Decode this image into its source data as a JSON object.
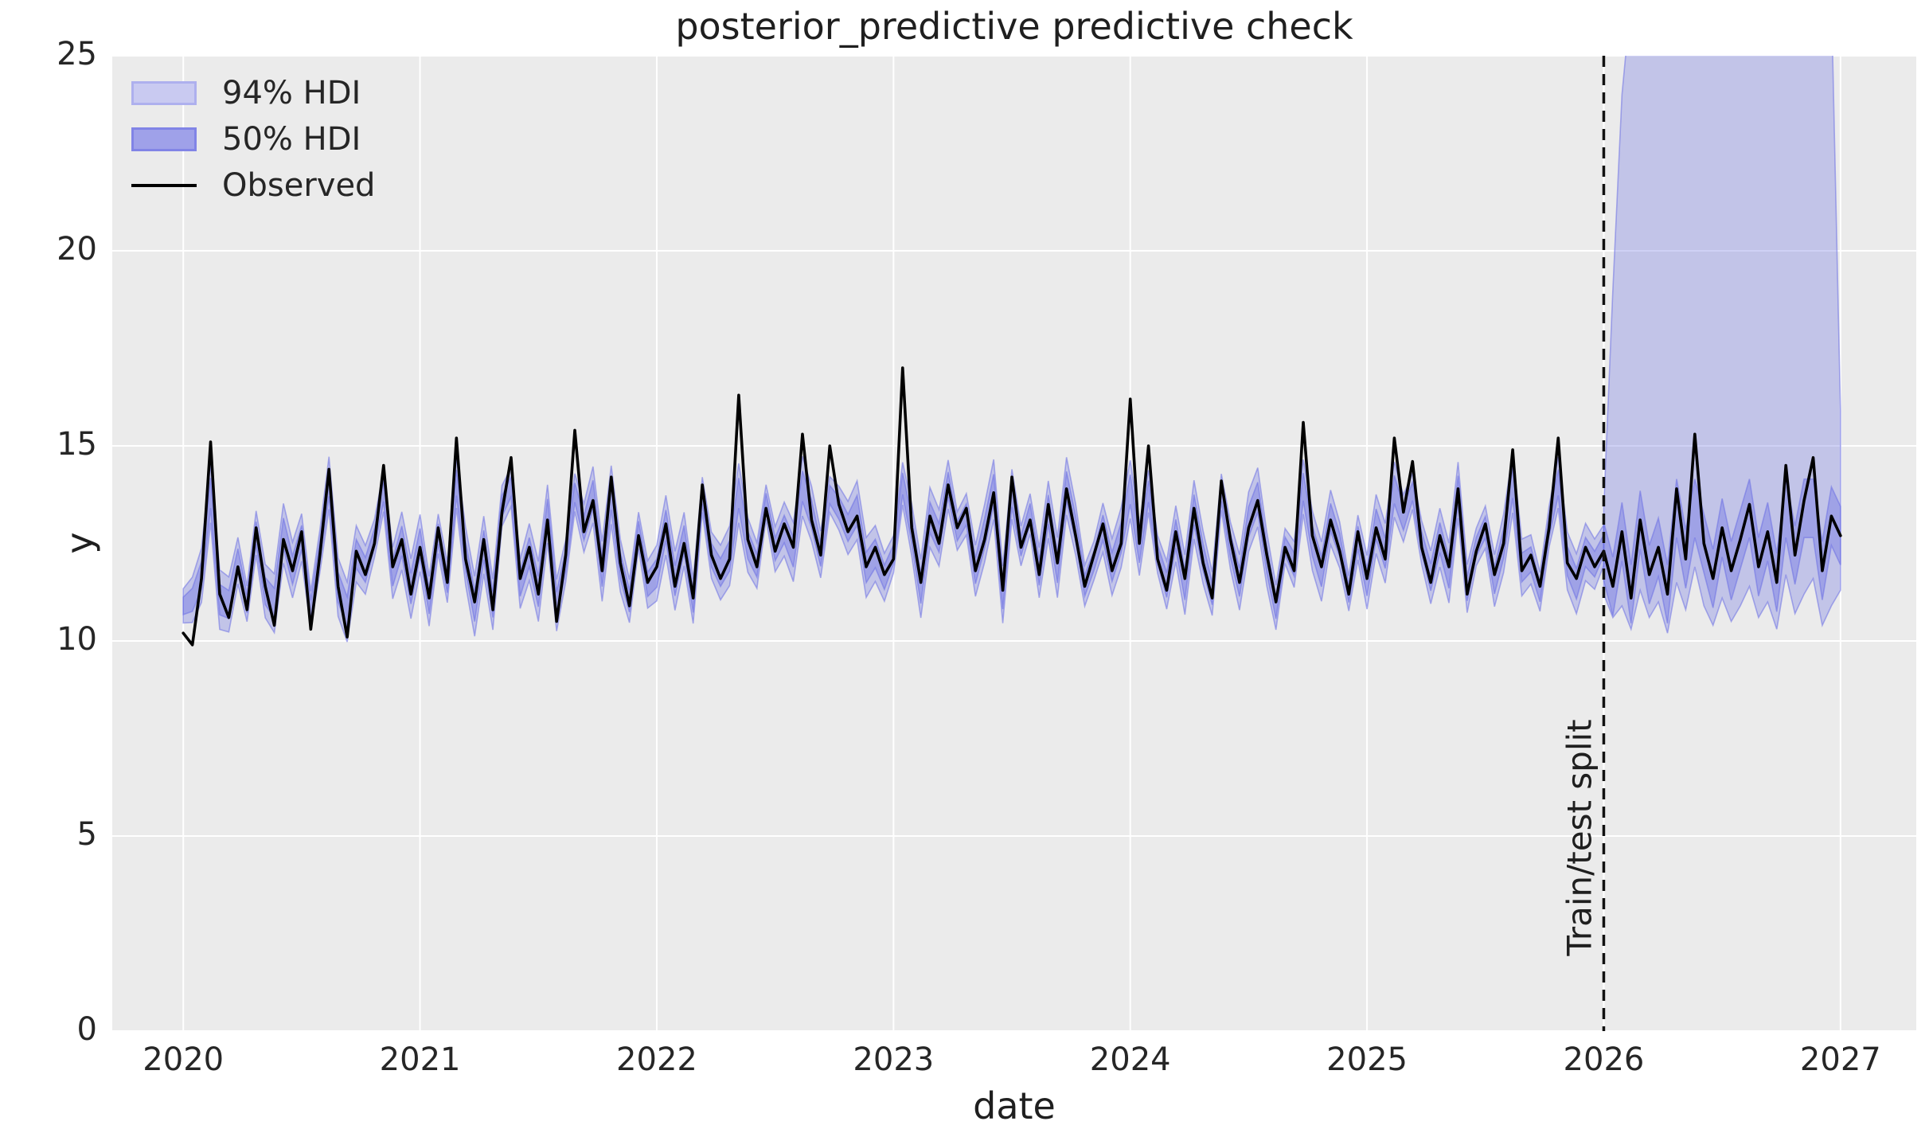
{
  "figure": {
    "title": "posterior_predictive predictive check",
    "xlabel": "date",
    "ylabel": "y"
  },
  "legend": {
    "items": [
      {
        "label": "94% HDI",
        "type": "band-light"
      },
      {
        "label": "50% HDI",
        "type": "band-dark"
      },
      {
        "label": "Observed",
        "type": "line"
      }
    ]
  },
  "annotations": {
    "split_label": "Train/test split"
  },
  "colors": {
    "panel_background": "#ebebeb",
    "grid": "#ffffff",
    "hdi94_fill": "rgba(130,133,230,0.38)",
    "hdi50_fill": "rgba(118,121,228,0.45)",
    "band_edge": "rgba(108,112,228,0.55)",
    "observed_line": "#000000",
    "split_line": "#111111",
    "legend_94_fill": "#c9caf1",
    "legend_94_border": "#aeb0ee",
    "legend_50_fill": "#9fa1e9",
    "legend_50_border": "#8184e6",
    "text": "#262626"
  },
  "chart_data": {
    "type": "line",
    "title": "posterior_predictive predictive check",
    "xlabel": "date",
    "ylabel": "y",
    "xlim": [
      2019.7,
      2027.32
    ],
    "ylim": [
      0,
      25
    ],
    "xticks": [
      2020,
      2021,
      2022,
      2023,
      2024,
      2025,
      2026,
      2027
    ],
    "yticks": [
      0,
      5,
      10,
      15,
      20,
      25
    ],
    "grid": true,
    "legend_position": "upper left",
    "split_x": 2026.0,
    "x_start": 2020.0,
    "x_step": 0.0384615,
    "series": [
      {
        "name": "Observed",
        "values": [
          10.2,
          9.9,
          11.6,
          15.1,
          11.2,
          10.6,
          11.9,
          10.8,
          12.9,
          11.4,
          10.4,
          12.6,
          11.8,
          12.8,
          10.3,
          12.2,
          14.4,
          11.4,
          10.1,
          12.3,
          11.7,
          12.5,
          14.5,
          11.9,
          12.6,
          11.2,
          12.4,
          11.1,
          12.9,
          11.5,
          15.2,
          12.1,
          11.0,
          12.6,
          10.8,
          13.3,
          14.7,
          11.6,
          12.4,
          11.2,
          13.1,
          10.5,
          12.2,
          15.4,
          12.8,
          13.6,
          11.8,
          14.2,
          12.0,
          10.9,
          12.7,
          11.5,
          11.9,
          13.0,
          11.4,
          12.5,
          11.1,
          14.0,
          12.2,
          11.6,
          12.1,
          16.3,
          12.6,
          11.9,
          13.4,
          12.3,
          13.0,
          12.4,
          15.3,
          13.1,
          12.2,
          15.0,
          13.5,
          12.8,
          13.2,
          11.9,
          12.4,
          11.7,
          12.1,
          17.0,
          12.9,
          11.5,
          13.2,
          12.5,
          14.0,
          12.9,
          13.4,
          11.8,
          12.6,
          13.8,
          11.3,
          14.2,
          12.4,
          13.1,
          11.7,
          13.5,
          12.0,
          13.9,
          12.7,
          11.4,
          12.2,
          13.0,
          11.8,
          12.5,
          16.2,
          12.5,
          15.0,
          12.1,
          11.3,
          12.8,
          11.6,
          13.4,
          12.0,
          11.1,
          14.1,
          12.6,
          11.5,
          12.9,
          13.6,
          12.2,
          11.0,
          12.4,
          11.8,
          15.6,
          12.7,
          11.9,
          13.1,
          12.3,
          11.2,
          12.8,
          11.6,
          12.9,
          12.1,
          15.2,
          13.3,
          14.6,
          12.4,
          11.5,
          12.7,
          11.9,
          13.9,
          11.2,
          12.3,
          13.0,
          11.7,
          12.5,
          14.9,
          11.8,
          12.2,
          11.4,
          12.9,
          15.2,
          12.0,
          11.6,
          12.4,
          11.9,
          12.3,
          11.4,
          12.8,
          11.1,
          13.1,
          11.7,
          12.4,
          11.2,
          13.9,
          12.1,
          15.3,
          12.5,
          11.6,
          12.9,
          11.8,
          12.6,
          13.5,
          11.9,
          12.8,
          11.5,
          14.5,
          12.2,
          13.6,
          14.7,
          11.8,
          13.2,
          12.7
        ]
      }
    ],
    "bands": {
      "pre_split": {
        "hdi94_halfwidth": 0.55,
        "hdi50_halfwidth": 0.28,
        "center_clamp": [
          10.9,
          13.9
        ]
      },
      "forecast": {
        "start_index": 156,
        "hdi94_upper": [
          13.4,
          19.0,
          24.0,
          26.5,
          26.5,
          26.5,
          26.5,
          26.5,
          26.5,
          26.5,
          26.5,
          26.5,
          26.5,
          26.5,
          26.5,
          26.5,
          26.5,
          26.5,
          26.5,
          26.5,
          26.5,
          26.5,
          26.5,
          26.5,
          26.5,
          26.5,
          15.9
        ],
        "hdi94_lower": [
          11.2,
          10.6,
          10.9,
          10.3,
          11.3,
          10.6,
          11.0,
          10.2,
          11.5,
          10.8,
          11.9,
          10.9,
          10.4,
          11.1,
          10.5,
          10.9,
          11.4,
          10.6,
          11.0,
          10.3,
          11.7,
          10.7,
          11.2,
          11.6,
          10.4,
          10.9,
          11.3
        ],
        "hdi50_halfwidth": 0.75,
        "center_clamp": [
          11.2,
          13.4
        ]
      }
    }
  }
}
